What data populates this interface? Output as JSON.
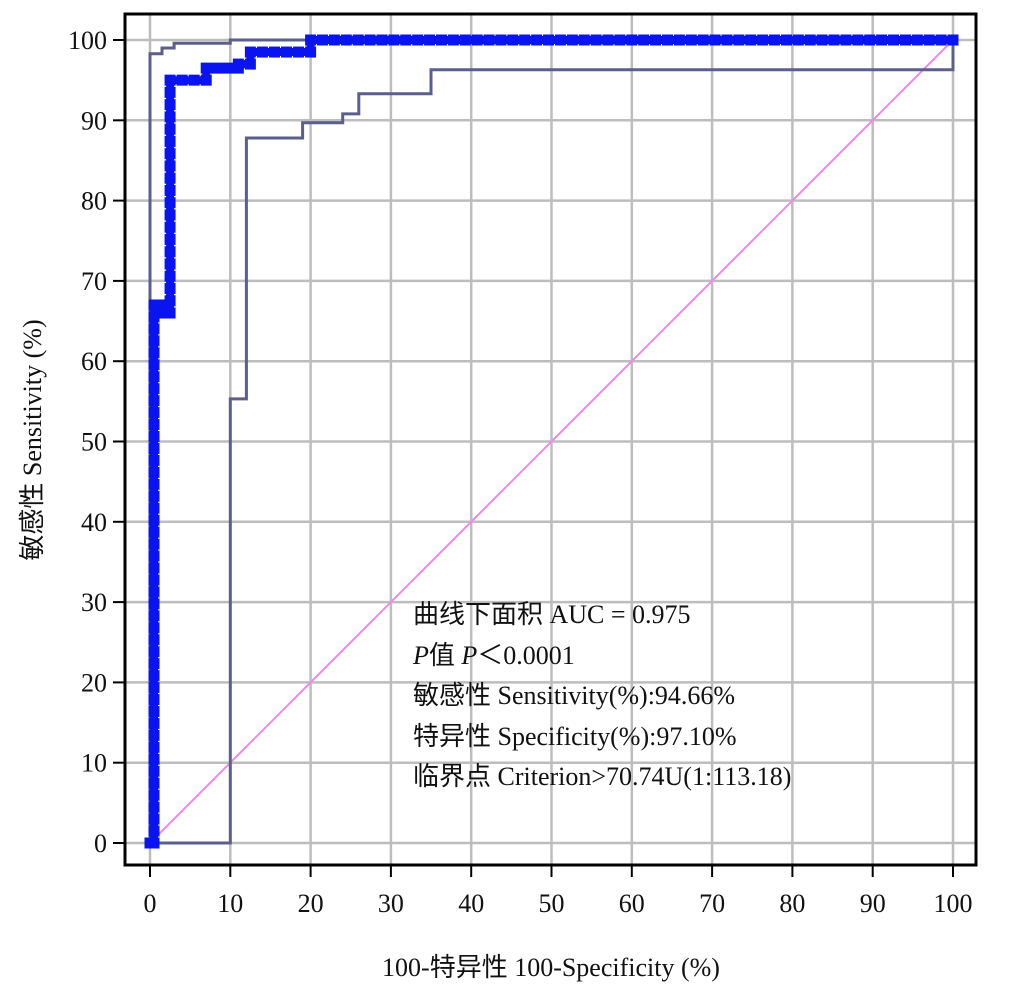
{
  "chart_data": {
    "type": "line",
    "xlabel": "100-特异性 100-Specificity (%)",
    "ylabel": "敏感性 Sensitivity (%)",
    "xlim": [
      0,
      100
    ],
    "ylim": [
      0,
      100
    ],
    "x_ticks": [
      "0",
      "10",
      "20",
      "30",
      "40",
      "50",
      "60",
      "70",
      "80",
      "90",
      "100"
    ],
    "y_ticks": [
      "0",
      "10",
      "20",
      "30",
      "40",
      "50",
      "60",
      "70",
      "80",
      "90",
      "100"
    ],
    "grid": true,
    "series": [
      {
        "role": "roc",
        "color": "#0a14f0",
        "markers": true,
        "points": [
          [
            0,
            0
          ],
          [
            0.5,
            0
          ],
          [
            0.5,
            67
          ],
          [
            1.5,
            67
          ],
          [
            1.5,
            67
          ],
          [
            1.5,
            66
          ],
          [
            2.5,
            66
          ],
          [
            2.5,
            95
          ],
          [
            7,
            95
          ],
          [
            7,
            96.5
          ],
          [
            11,
            96.5
          ],
          [
            11,
            97
          ],
          [
            12.5,
            97
          ],
          [
            12.5,
            98.5
          ],
          [
            20,
            98.5
          ],
          [
            20,
            100
          ],
          [
            100,
            100
          ]
        ]
      },
      {
        "role": "upper-ci",
        "color": "#5a5f8c",
        "markers": false,
        "points": [
          [
            0,
            0
          ],
          [
            0,
            98.3
          ],
          [
            1.5,
            98.3
          ],
          [
            1.5,
            99
          ],
          [
            3,
            99
          ],
          [
            3,
            99.6
          ],
          [
            10,
            99.6
          ],
          [
            10,
            100
          ],
          [
            100,
            100
          ]
        ]
      },
      {
        "role": "lower-ci",
        "color": "#5a5f8c",
        "markers": false,
        "points": [
          [
            0,
            0
          ],
          [
            10,
            0
          ],
          [
            10,
            55.3
          ],
          [
            12,
            55.3
          ],
          [
            12,
            87.8
          ],
          [
            19,
            87.8
          ],
          [
            19,
            89.7
          ],
          [
            24,
            89.7
          ],
          [
            24,
            90.8
          ],
          [
            26,
            90.8
          ],
          [
            26,
            93.3
          ],
          [
            35,
            93.3
          ],
          [
            35,
            96.3
          ],
          [
            100,
            96.3
          ],
          [
            100,
            100
          ]
        ]
      },
      {
        "role": "reference",
        "color": "#ee88ee",
        "markers": false,
        "points": [
          [
            0,
            0
          ],
          [
            100,
            100
          ]
        ]
      }
    ],
    "annotations": [
      "曲线下面积 AUC = 0.975",
      "P值 P＜0.0001",
      "敏感性 Sensitivity(%):94.66%",
      "特异性 Specificity(%):97.10%",
      "临界点 Criterion>70.74U(1:113.18)"
    ]
  },
  "annotation_parts": {
    "p_line": {
      "italic_p": "P",
      "zhi": "值 ",
      "italic_p2": "P",
      "rest": "＜0.0001"
    }
  }
}
